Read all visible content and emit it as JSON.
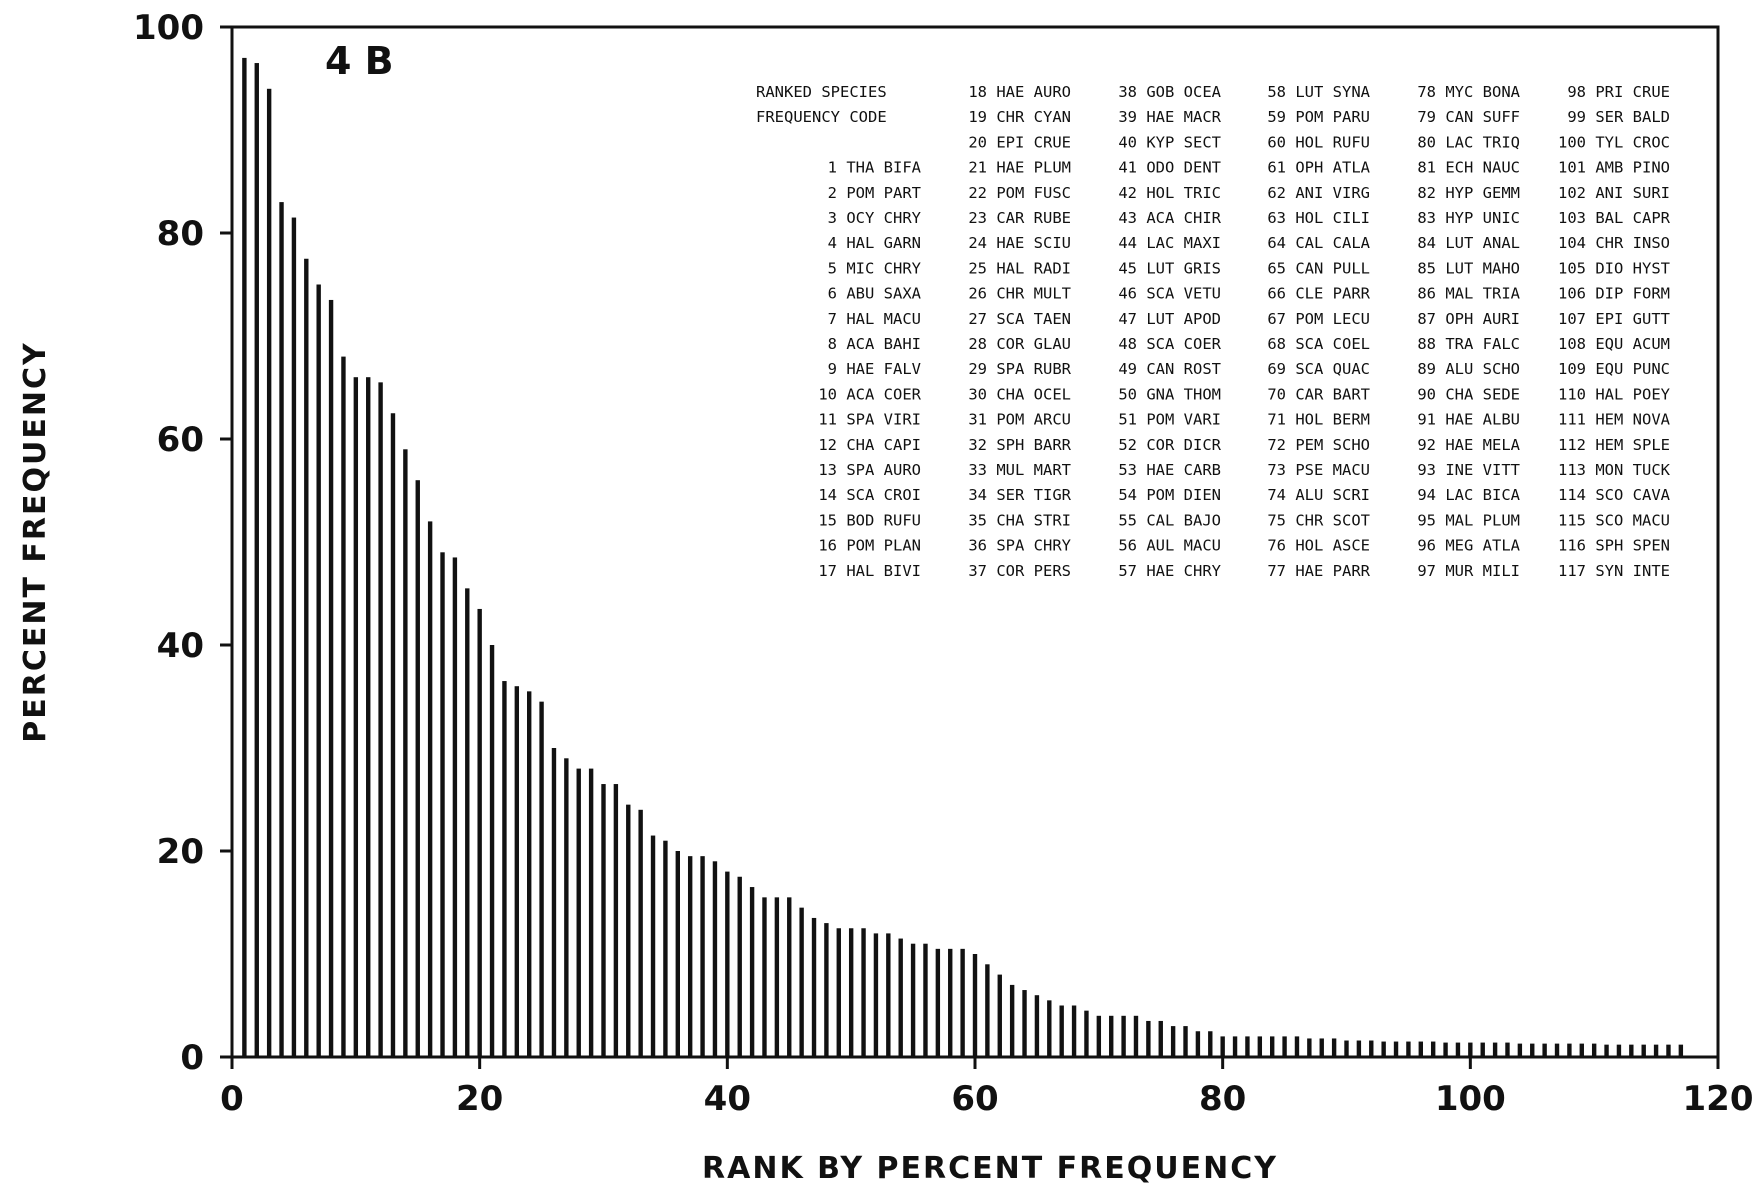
{
  "chart_data": {
    "type": "bar",
    "panel_label": "4 B",
    "xlabel": "RANK BY PERCENT FREQUENCY",
    "ylabel": "PERCENT FREQUENCY",
    "xlim": [
      0,
      120
    ],
    "ylim": [
      0,
      100
    ],
    "x_ticks": [
      0,
      20,
      40,
      60,
      80,
      100,
      120
    ],
    "y_ticks": [
      0,
      20,
      40,
      60,
      80,
      100
    ],
    "grid": false,
    "legend_header": [
      "RANKED  SPECIES",
      "FREQUENCY  CODE"
    ],
    "values": [
      97,
      96.5,
      94,
      83,
      81.5,
      77.5,
      75,
      73.5,
      68,
      66,
      66,
      65.5,
      62.5,
      59,
      56,
      52,
      49,
      48.5,
      45.5,
      43.5,
      40,
      36.5,
      36,
      35.5,
      34.5,
      30,
      29,
      28,
      28,
      26.5,
      26.5,
      24.5,
      24,
      21.5,
      21,
      20,
      19.5,
      19.5,
      19,
      18,
      17.5,
      16.5,
      15.5,
      15.5,
      15.5,
      14.5,
      13.5,
      13,
      12.5,
      12.5,
      12.5,
      12,
      12,
      11.5,
      11,
      11,
      10.5,
      10.5,
      10.5,
      10,
      9,
      8,
      7,
      6.5,
      6,
      5.5,
      5,
      5,
      4.5,
      4,
      4,
      4,
      4,
      3.5,
      3.5,
      3,
      3,
      2.5,
      2.5,
      2,
      2,
      2,
      2,
      2,
      2,
      2,
      1.8,
      1.8,
      1.8,
      1.6,
      1.6,
      1.6,
      1.5,
      1.5,
      1.5,
      1.5,
      1.5,
      1.4,
      1.4,
      1.4,
      1.4,
      1.4,
      1.4,
      1.3,
      1.3,
      1.3,
      1.3,
      1.3,
      1.3,
      1.3,
      1.2,
      1.2,
      1.2,
      1.2,
      1.2,
      1.2,
      1.2
    ],
    "species": [
      "THA BIFA",
      "POM PART",
      "OCY CHRY",
      "HAL GARN",
      "MIC CHRY",
      "ABU SAXA",
      "HAL MACU",
      "ACA BAHI",
      "HAE FALV",
      "ACA COER",
      "SPA VIRI",
      "CHA CAPI",
      "SPA AURO",
      "SCA CROI",
      "BOD RUFU",
      "POM PLAN",
      "HAL BIVI",
      "HAE AURO",
      "CHR CYAN",
      "EPI CRUE",
      "HAE PLUM",
      "POM FUSC",
      "CAR RUBE",
      "HAE SCIU",
      "HAL RADI",
      "CHR MULT",
      "SCA TAEN",
      "COR GLAU",
      "SPA RUBR",
      "CHA OCEL",
      "POM ARCU",
      "SPH BARR",
      "MUL MART",
      "SER TIGR",
      "CHA STRI",
      "SPA CHRY",
      "COR PERS",
      "GOB OCEA",
      "HAE MACR",
      "KYP SECT",
      "ODO DENT",
      "HOL TRIC",
      "ACA CHIR",
      "LAC MAXI",
      "LUT GRIS",
      "SCA VETU",
      "LUT APOD",
      "SCA COER",
      "CAN ROST",
      "GNA THOM",
      "POM VARI",
      "COR DICR",
      "HAE CARB",
      "POM DIEN",
      "CAL BAJO",
      "AUL MACU",
      "HAE CHRY",
      "LUT SYNA",
      "POM PARU",
      "HOL RUFU",
      "OPH ATLA",
      "ANI VIRG",
      "HOL CILI",
      "CAL CALA",
      "CAN PULL",
      "CLE PARR",
      "POM LECU",
      "SCA COEL",
      "SCA QUAC",
      "CAR BART",
      "HOL BERM",
      "PEM SCHO",
      "PSE MACU",
      "ALU SCRI",
      "CHR SCOT",
      "HOL ASCE",
      "HAE PARR",
      "MYC BONA",
      "CAN SUFF",
      "LAC TRIQ",
      "ECH NAUC",
      "HYP GEMM",
      "HYP UNIC",
      "LUT ANAL",
      "LUT MAHO",
      "MAL TRIA",
      "OPH AURI",
      "TRA FALC",
      "ALU SCHO",
      "CHA SEDE",
      "HAE ALBU",
      "HAE MELA",
      "INE VITT",
      "LAC BICA",
      "MAL PLUM",
      "MEG ATLA",
      "MUR MILI",
      "PRI CRUE",
      "SER BALD",
      "TYL CROC",
      "AMB PINO",
      "ANI SURI",
      "BAL CAPR",
      "CHR INSO",
      "DIO HYST",
      "DIP FORM",
      "EPI GUTT",
      "EQU ACUM",
      "EQU PUNC",
      "HAL POEY",
      "HEM NOVA",
      "HEM SPLE",
      "MON TUCK",
      "SCO CAVA",
      "SCO MACU",
      "SPH SPEN",
      "SYN INTE"
    ]
  }
}
